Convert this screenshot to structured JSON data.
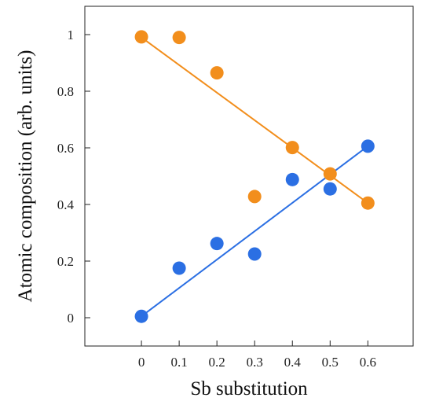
{
  "chart_data": {
    "type": "scatter",
    "title": "",
    "xlabel": "Sb substitution",
    "ylabel": "Atomic composition (arb. units)",
    "xlim": [
      -0.15,
      0.72
    ],
    "ylim": [
      -0.1,
      1.1
    ],
    "x_ticks": [
      0,
      0.1,
      0.2,
      0.3,
      0.4,
      0.5,
      0.6
    ],
    "x_tick_labels": [
      "0",
      "0.1",
      "0.2",
      "0.3",
      "0.4",
      "0.5",
      "0.6"
    ],
    "y_ticks": [
      0,
      0.2,
      0.4,
      0.6,
      0.8,
      1.0
    ],
    "y_tick_labels": [
      "0",
      "0.2",
      "0.4",
      "0.6",
      "0.8",
      "1"
    ],
    "grid": false,
    "legend": "none",
    "series": [
      {
        "color": "#f28e1c",
        "x": [
          0,
          0.1,
          0.2,
          0.3,
          0.4,
          0.5,
          0.6
        ],
        "y": [
          0.992,
          0.99,
          0.865,
          0.428,
          0.601,
          0.508,
          0.405
        ],
        "fit_line": {
          "x": [
            0,
            0.6
          ],
          "y": [
            0.99,
            0.405
          ]
        }
      },
      {
        "color": "#2b6fe3",
        "x": [
          0,
          0.1,
          0.2,
          0.3,
          0.4,
          0.5,
          0.6
        ],
        "y": [
          0.005,
          0.175,
          0.262,
          0.225,
          0.488,
          0.455,
          0.606
        ],
        "fit_line": {
          "x": [
            0,
            0.6
          ],
          "y": [
            0.005,
            0.606
          ]
        }
      }
    ]
  }
}
